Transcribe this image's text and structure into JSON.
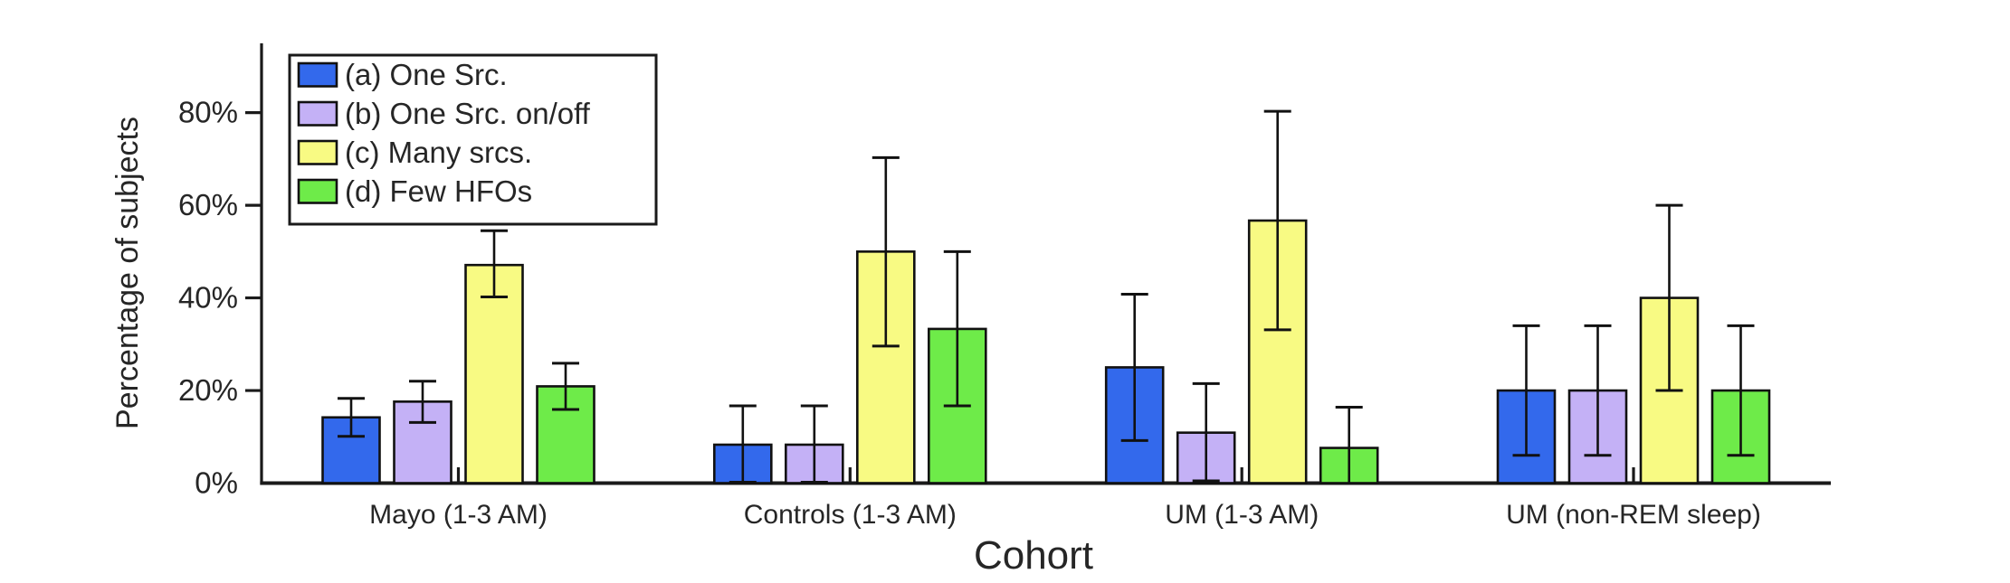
{
  "figure": {
    "background": "#ffffff",
    "text_color": "#262626",
    "axis_color": "#1a1a1a",
    "bar_outline_color": "#111111"
  },
  "chart_data": {
    "type": "bar",
    "title": "",
    "xlabel": "Cohort",
    "ylabel": "Percentage of subjects",
    "categories": [
      "Mayo (1-3 AM)",
      "Controls (1-3 AM)",
      "UM (1-3 AM)",
      "UM (non-REM sleep)"
    ],
    "y_ticks": [
      "0%",
      "20%",
      "40%",
      "60%",
      "80%"
    ],
    "y_tick_values": [
      0,
      20,
      40,
      60,
      80
    ],
    "ylim": [
      0,
      95
    ],
    "grid": false,
    "legend_position": "upper-left-inside",
    "error_bars": true,
    "series": [
      {
        "name": "(a) One Src.",
        "color": "#3369EC",
        "values": [
          14.2,
          8.3,
          25.0,
          20.0
        ],
        "error_low": [
          10.1,
          0.2,
          9.2,
          6.0
        ],
        "error_high": [
          18.3,
          16.7,
          40.8,
          34.0
        ]
      },
      {
        "name": "(b) One Src. on/off",
        "color": "#C4B1F6",
        "values": [
          17.6,
          8.3,
          10.9,
          20.0
        ],
        "error_low": [
          13.1,
          0.2,
          0.5,
          6.0
        ],
        "error_high": [
          22.0,
          16.7,
          21.5,
          34.0
        ]
      },
      {
        "name": "(c) Many srcs.",
        "color": "#F8FA83",
        "values": [
          47.1,
          50.0,
          56.7,
          40.0
        ],
        "error_low": [
          40.2,
          29.6,
          33.1,
          20.0
        ],
        "error_high": [
          54.5,
          70.3,
          80.3,
          60.0
        ]
      },
      {
        "name": "(d) Few HFOs",
        "color": "#6EEB49",
        "values": [
          20.9,
          33.3,
          7.6,
          20.0
        ],
        "error_low": [
          15.9,
          16.7,
          0.0,
          6.0
        ],
        "error_high": [
          25.9,
          50.0,
          16.4,
          34.0
        ]
      }
    ]
  }
}
